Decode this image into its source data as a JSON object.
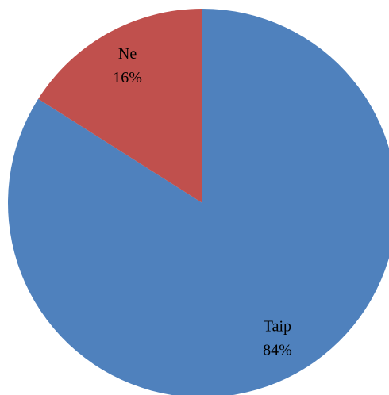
{
  "chart_data": {
    "type": "pie",
    "categories": [
      "Taip",
      "Ne"
    ],
    "values": [
      84,
      16
    ],
    "value_labels": [
      "84%",
      "16%"
    ],
    "colors": [
      "#4f81bd",
      "#c0504d"
    ]
  }
}
